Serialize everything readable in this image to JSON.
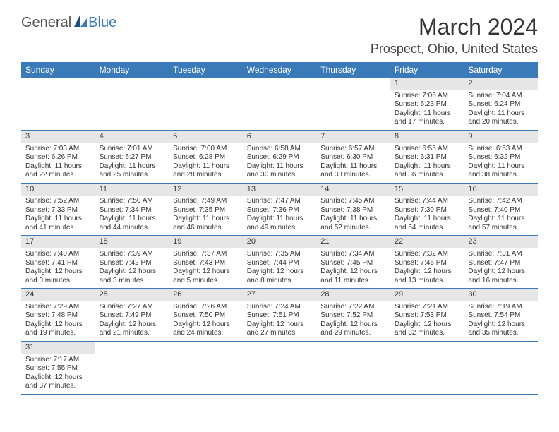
{
  "logo": {
    "general": "General",
    "blue": "Blue"
  },
  "title": "March 2024",
  "location": "Prospect, Ohio, United States",
  "colors": {
    "header_bg": "#3a7ab8",
    "daynum_bg": "#e6e6e6",
    "row_border": "#3a7ab8",
    "text": "#333333",
    "logo_blue": "#3a7ab8"
  },
  "day_names": [
    "Sunday",
    "Monday",
    "Tuesday",
    "Wednesday",
    "Thursday",
    "Friday",
    "Saturday"
  ],
  "weeks": [
    [
      null,
      null,
      null,
      null,
      null,
      {
        "n": "1",
        "sunrise": "7:06 AM",
        "sunset": "6:23 PM",
        "dl": "11 hours and 17 minutes."
      },
      {
        "n": "2",
        "sunrise": "7:04 AM",
        "sunset": "6:24 PM",
        "dl": "11 hours and 20 minutes."
      }
    ],
    [
      {
        "n": "3",
        "sunrise": "7:03 AM",
        "sunset": "6:26 PM",
        "dl": "11 hours and 22 minutes."
      },
      {
        "n": "4",
        "sunrise": "7:01 AM",
        "sunset": "6:27 PM",
        "dl": "11 hours and 25 minutes."
      },
      {
        "n": "5",
        "sunrise": "7:00 AM",
        "sunset": "6:28 PM",
        "dl": "11 hours and 28 minutes."
      },
      {
        "n": "6",
        "sunrise": "6:58 AM",
        "sunset": "6:29 PM",
        "dl": "11 hours and 30 minutes."
      },
      {
        "n": "7",
        "sunrise": "6:57 AM",
        "sunset": "6:30 PM",
        "dl": "11 hours and 33 minutes."
      },
      {
        "n": "8",
        "sunrise": "6:55 AM",
        "sunset": "6:31 PM",
        "dl": "11 hours and 36 minutes."
      },
      {
        "n": "9",
        "sunrise": "6:53 AM",
        "sunset": "6:32 PM",
        "dl": "11 hours and 38 minutes."
      }
    ],
    [
      {
        "n": "10",
        "sunrise": "7:52 AM",
        "sunset": "7:33 PM",
        "dl": "11 hours and 41 minutes."
      },
      {
        "n": "11",
        "sunrise": "7:50 AM",
        "sunset": "7:34 PM",
        "dl": "11 hours and 44 minutes."
      },
      {
        "n": "12",
        "sunrise": "7:49 AM",
        "sunset": "7:35 PM",
        "dl": "11 hours and 46 minutes."
      },
      {
        "n": "13",
        "sunrise": "7:47 AM",
        "sunset": "7:36 PM",
        "dl": "11 hours and 49 minutes."
      },
      {
        "n": "14",
        "sunrise": "7:45 AM",
        "sunset": "7:38 PM",
        "dl": "11 hours and 52 minutes."
      },
      {
        "n": "15",
        "sunrise": "7:44 AM",
        "sunset": "7:39 PM",
        "dl": "11 hours and 54 minutes."
      },
      {
        "n": "16",
        "sunrise": "7:42 AM",
        "sunset": "7:40 PM",
        "dl": "11 hours and 57 minutes."
      }
    ],
    [
      {
        "n": "17",
        "sunrise": "7:40 AM",
        "sunset": "7:41 PM",
        "dl": "12 hours and 0 minutes."
      },
      {
        "n": "18",
        "sunrise": "7:39 AM",
        "sunset": "7:42 PM",
        "dl": "12 hours and 3 minutes."
      },
      {
        "n": "19",
        "sunrise": "7:37 AM",
        "sunset": "7:43 PM",
        "dl": "12 hours and 5 minutes."
      },
      {
        "n": "20",
        "sunrise": "7:35 AM",
        "sunset": "7:44 PM",
        "dl": "12 hours and 8 minutes."
      },
      {
        "n": "21",
        "sunrise": "7:34 AM",
        "sunset": "7:45 PM",
        "dl": "12 hours and 11 minutes."
      },
      {
        "n": "22",
        "sunrise": "7:32 AM",
        "sunset": "7:46 PM",
        "dl": "12 hours and 13 minutes."
      },
      {
        "n": "23",
        "sunrise": "7:31 AM",
        "sunset": "7:47 PM",
        "dl": "12 hours and 16 minutes."
      }
    ],
    [
      {
        "n": "24",
        "sunrise": "7:29 AM",
        "sunset": "7:48 PM",
        "dl": "12 hours and 19 minutes."
      },
      {
        "n": "25",
        "sunrise": "7:27 AM",
        "sunset": "7:49 PM",
        "dl": "12 hours and 21 minutes."
      },
      {
        "n": "26",
        "sunrise": "7:26 AM",
        "sunset": "7:50 PM",
        "dl": "12 hours and 24 minutes."
      },
      {
        "n": "27",
        "sunrise": "7:24 AM",
        "sunset": "7:51 PM",
        "dl": "12 hours and 27 minutes."
      },
      {
        "n": "28",
        "sunrise": "7:22 AM",
        "sunset": "7:52 PM",
        "dl": "12 hours and 29 minutes."
      },
      {
        "n": "29",
        "sunrise": "7:21 AM",
        "sunset": "7:53 PM",
        "dl": "12 hours and 32 minutes."
      },
      {
        "n": "30",
        "sunrise": "7:19 AM",
        "sunset": "7:54 PM",
        "dl": "12 hours and 35 minutes."
      }
    ],
    [
      {
        "n": "31",
        "sunrise": "7:17 AM",
        "sunset": "7:55 PM",
        "dl": "12 hours and 37 minutes."
      },
      null,
      null,
      null,
      null,
      null,
      null
    ]
  ],
  "labels": {
    "sunrise": "Sunrise: ",
    "sunset": "Sunset: ",
    "daylight": "Daylight: "
  }
}
